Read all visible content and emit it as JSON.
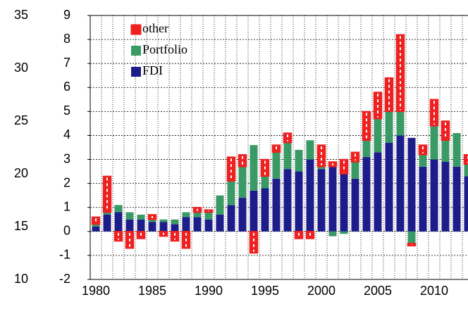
{
  "chart_data": {
    "type": "stacked-bar",
    "x": [
      1980,
      1981,
      1982,
      1983,
      1984,
      1985,
      1986,
      1987,
      1988,
      1989,
      1990,
      1991,
      1992,
      1993,
      1994,
      1995,
      1996,
      1997,
      1998,
      1999,
      2000,
      2001,
      2002,
      2003,
      2004,
      2005,
      2006,
      2007,
      2008,
      2009,
      2010,
      2011,
      2012,
      2013
    ],
    "series": [
      {
        "name": "FDI",
        "color": "#1c1c8a",
        "values": [
          0.2,
          0.7,
          0.8,
          0.5,
          0.5,
          0.4,
          0.4,
          0.3,
          0.6,
          0.6,
          0.5,
          0.7,
          1.1,
          1.4,
          1.7,
          1.8,
          2.2,
          2.6,
          2.5,
          3.0,
          2.6,
          2.7,
          2.4,
          2.2,
          3.1,
          3.3,
          3.7,
          4.0,
          3.9,
          2.7,
          3.0,
          2.9,
          2.7,
          2.3
        ]
      },
      {
        "name": "Portfolio",
        "color": "#3a9a66",
        "values": [
          0.1,
          0.1,
          0.3,
          0.3,
          0.2,
          0.1,
          0.1,
          0.2,
          0.2,
          0.2,
          0.3,
          0.8,
          1.0,
          1.3,
          1.9,
          0.5,
          1.1,
          1.1,
          0.9,
          0.8,
          0.1,
          -0.2,
          -0.1,
          0.7,
          0.7,
          1.4,
          1.3,
          1.0,
          -0.5,
          0.5,
          1.4,
          0.9,
          1.4,
          0.5
        ]
      },
      {
        "name": "other",
        "color": "#ee2020",
        "values": [
          0.3,
          1.5,
          -0.4,
          -0.7,
          -0.3,
          0.2,
          -0.2,
          -0.4,
          -0.7,
          0.2,
          0.1,
          0.0,
          1.0,
          0.5,
          -0.9,
          0.7,
          0.3,
          0.4,
          -0.3,
          -0.3,
          0.9,
          0.2,
          0.6,
          0.4,
          1.2,
          1.1,
          1.4,
          3.2,
          -0.1,
          0.4,
          1.1,
          0.8,
          0.0,
          0.4
        ]
      }
    ],
    "xlim": [
      1979.5,
      2013
    ],
    "xticks": [
      1980,
      1985,
      1990,
      1995,
      2000,
      2005,
      2010
    ],
    "ylim": [
      -2,
      9
    ],
    "yticks": [
      -2,
      -1,
      0,
      1,
      2,
      3,
      4,
      5,
      6,
      7,
      8,
      9
    ],
    "y2lim": [
      10,
      35
    ],
    "y2ticks": [
      10,
      15,
      20,
      25,
      30,
      35
    ],
    "grid": true,
    "legend": "upper left"
  }
}
